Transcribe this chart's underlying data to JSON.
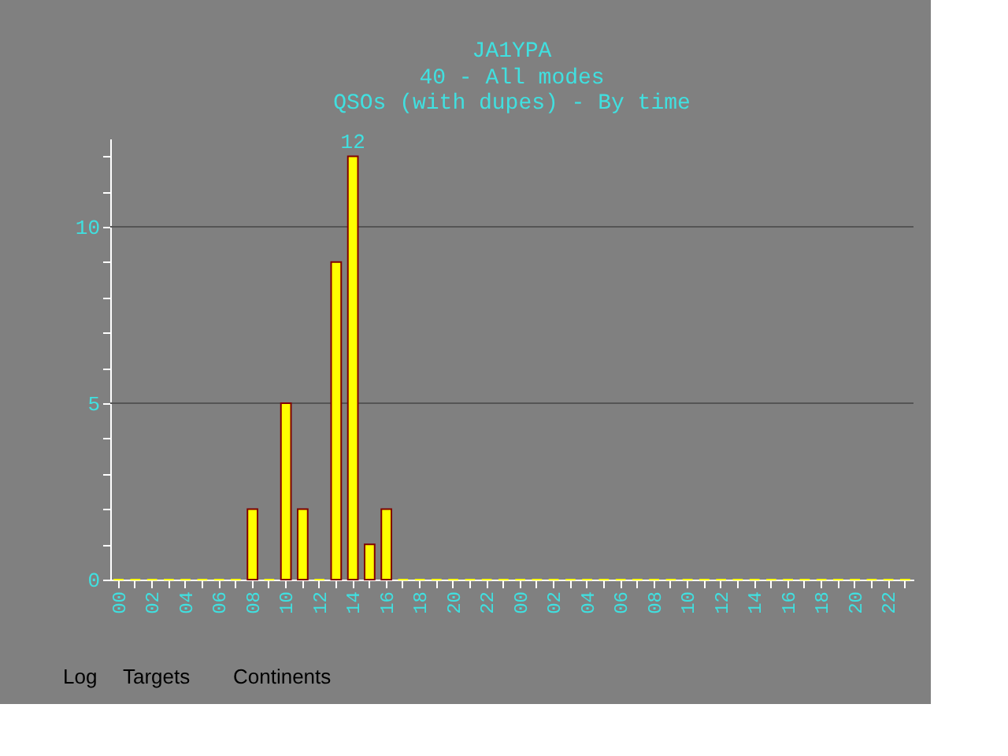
{
  "chart_data": {
    "type": "bar",
    "title": "JA1YPA",
    "subtitle": [
      "40 - All modes",
      "QSOs (with dupes) - By time"
    ],
    "categories": [
      "00",
      null,
      "02",
      null,
      "04",
      null,
      "06",
      null,
      "08",
      null,
      "10",
      null,
      "12",
      null,
      "14",
      null,
      "16",
      null,
      "18",
      null,
      "20",
      null,
      "22",
      null,
      "00",
      null,
      "02",
      null,
      "04",
      null,
      "06",
      null,
      "08",
      null,
      "10",
      null,
      "12",
      null,
      "14",
      null,
      "16",
      null,
      "18",
      null,
      "20",
      null,
      "22",
      null
    ],
    "values": [
      0,
      0,
      0,
      0,
      0,
      0,
      0,
      0,
      2,
      0,
      5,
      2,
      0,
      9,
      12,
      1,
      2,
      0,
      0,
      0,
      0,
      0,
      0,
      0,
      0,
      0,
      0,
      0,
      0,
      0,
      0,
      0,
      0,
      0,
      0,
      0,
      0,
      0,
      0,
      0,
      0,
      0,
      0,
      0,
      0,
      0,
      0,
      0
    ],
    "value_labels": [
      null,
      null,
      null,
      null,
      null,
      null,
      null,
      null,
      null,
      null,
      null,
      null,
      null,
      null,
      "12",
      null,
      null,
      null,
      null,
      null,
      null,
      null,
      null,
      null,
      null,
      null,
      null,
      null,
      null,
      null,
      null,
      null,
      null,
      null,
      null,
      null,
      null,
      null,
      null,
      null,
      null,
      null,
      null,
      null,
      null,
      null,
      null,
      null
    ],
    "color": "#ffff00",
    "ylim": [
      0,
      12.5
    ],
    "yticks": [
      0,
      {
        "value": 1,
        "label": null
      },
      {
        "value": 2,
        "label": null
      },
      {
        "value": 3,
        "label": null
      },
      {
        "value": 4,
        "label": null
      },
      5,
      {
        "value": 6,
        "label": null
      },
      {
        "value": 7,
        "label": null
      },
      {
        "value": 8,
        "label": null
      },
      {
        "value": 9,
        "label": null
      },
      10,
      {
        "value": 11,
        "label": null
      },
      {
        "value": 12,
        "label": null
      }
    ],
    "grid": "y",
    "annotations": [
      "Log",
      "Targets",
      "Continents"
    ]
  }
}
